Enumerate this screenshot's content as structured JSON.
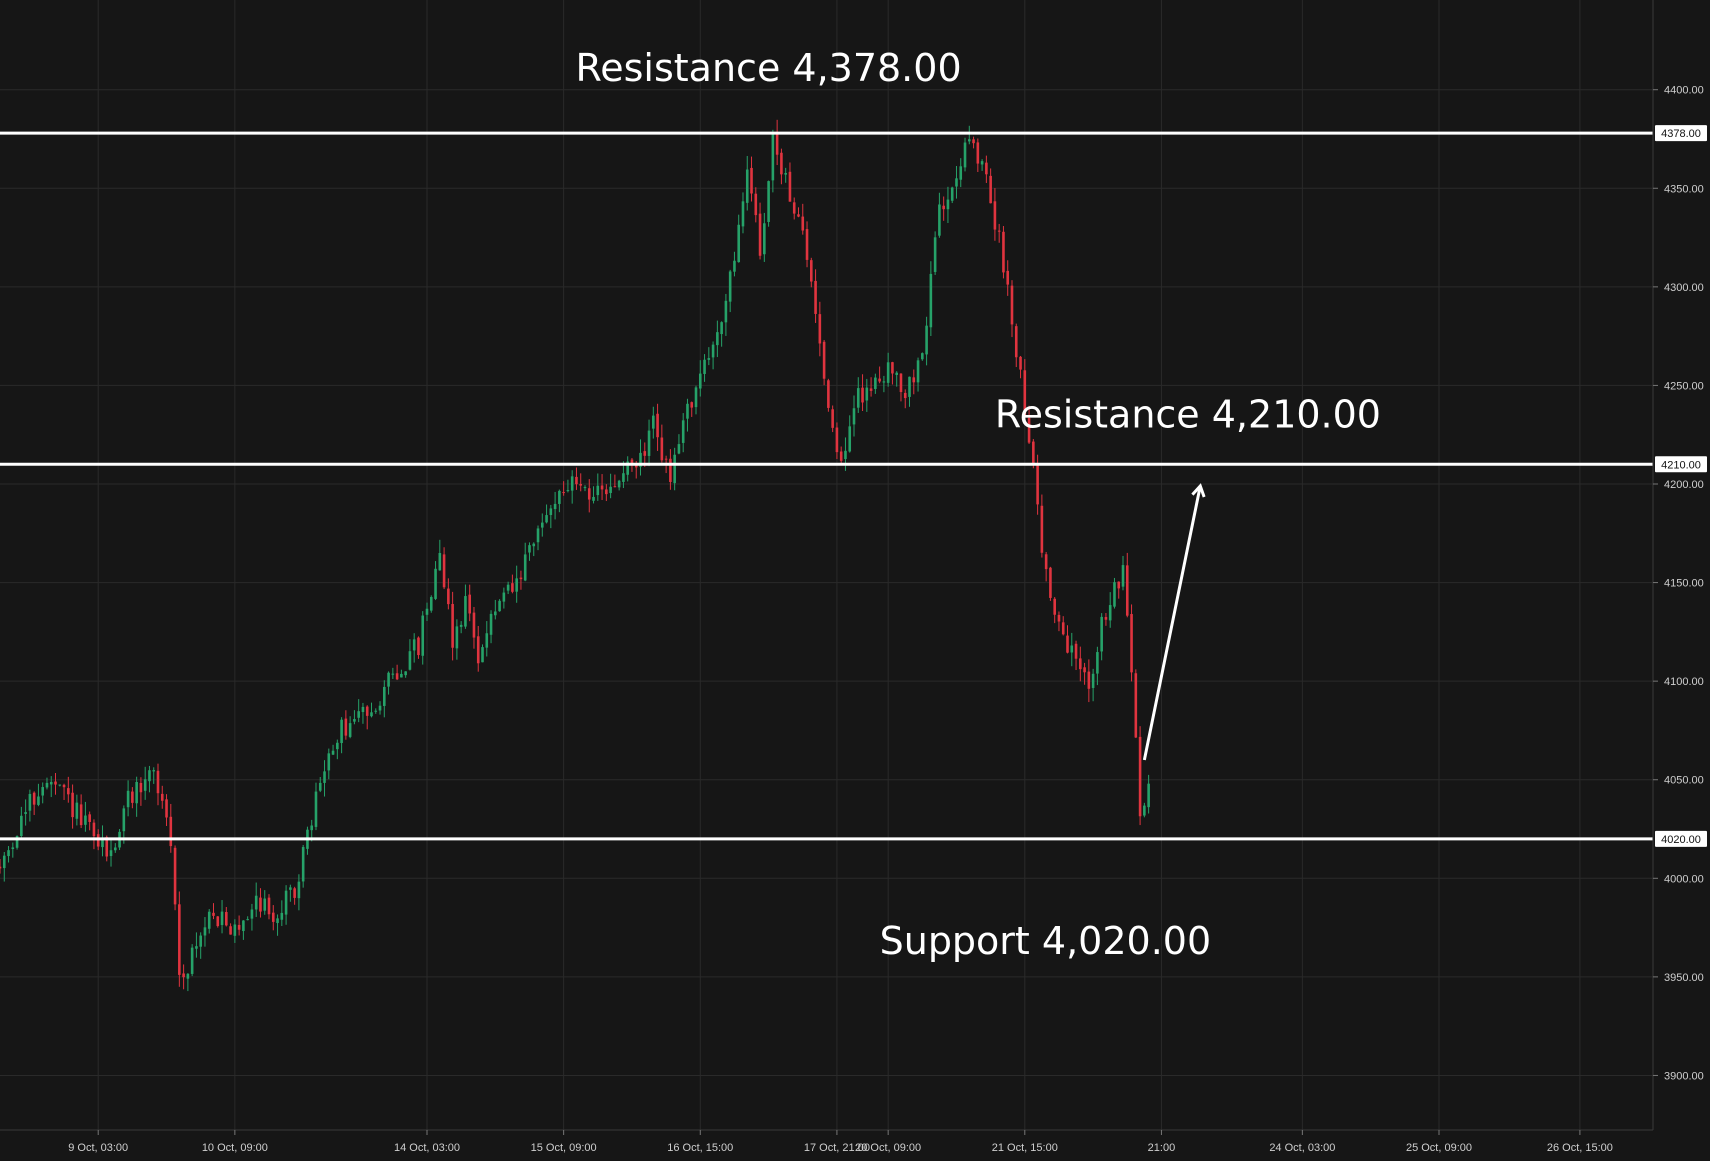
{
  "chart_data": {
    "type": "candlestick",
    "ylim": [
      3860,
      4438
    ],
    "y_ticks": [
      {
        "value": 4400,
        "label": "4400.00"
      },
      {
        "value": 4350,
        "label": "4350.00"
      },
      {
        "value": 4300,
        "label": "4300.00"
      },
      {
        "value": 4250,
        "label": "4250.00"
      },
      {
        "value": 4200,
        "label": "4200.00"
      },
      {
        "value": 4150,
        "label": "4150.00"
      },
      {
        "value": 4100,
        "label": "4100.00"
      },
      {
        "value": 4050,
        "label": "4050.00"
      },
      {
        "value": 4000,
        "label": "4000.00"
      },
      {
        "value": 3950,
        "label": "3950.00"
      },
      {
        "value": 3900,
        "label": "3900.00"
      }
    ],
    "x_ticks": [
      {
        "index": 23,
        "label": "9 Oct, 03:00"
      },
      {
        "index": 55,
        "label": "10 Oct, 09:00"
      },
      {
        "index": 100,
        "label": "14 Oct, 03:00"
      },
      {
        "index": 132,
        "label": "15 Oct, 09:00"
      },
      {
        "index": 164,
        "label": "16 Oct, 15:00"
      },
      {
        "index": 196,
        "label": "17 Oct, 21:00"
      },
      {
        "index": 208,
        "label": "20 Oct, 09:00"
      },
      {
        "index": 240,
        "label": "21 Oct, 15:00"
      },
      {
        "index": 272,
        "label": "21:00"
      },
      {
        "index": 305,
        "label": "24 Oct, 03:00"
      },
      {
        "index": 337,
        "label": "25 Oct, 09:00"
      },
      {
        "index": 370,
        "label": "26 Oct, 15:00"
      }
    ],
    "levels": [
      {
        "value": 4378,
        "tag": "4378.00",
        "annotation": "Resistance 4,378.00"
      },
      {
        "value": 4210,
        "tag": "4210.00",
        "annotation": "Resistance 4,210.00"
      },
      {
        "value": 4020,
        "tag": "4020.00",
        "annotation": "Support 4,020.00"
      }
    ],
    "projection_arrow": {
      "from_index": 268,
      "from_value": 4060,
      "to_index": 281,
      "to_value": 4198
    },
    "colors": {
      "up": "#26a269",
      "down": "#e0343f",
      "level_line": "#ffffff",
      "background": "#161616",
      "grid": "#2a2a2a",
      "text": "#cfcfcf"
    },
    "waypoints": [
      [
        0,
        4005
      ],
      [
        5,
        4030
      ],
      [
        10,
        4048
      ],
      [
        15,
        4042
      ],
      [
        22,
        4020
      ],
      [
        26,
        4012
      ],
      [
        30,
        4040
      ],
      [
        36,
        4055
      ],
      [
        40,
        4018
      ],
      [
        42,
        3950
      ],
      [
        46,
        3965
      ],
      [
        50,
        3985
      ],
      [
        54,
        3970
      ],
      [
        60,
        3990
      ],
      [
        65,
        3980
      ],
      [
        70,
        4000
      ],
      [
        75,
        4050
      ],
      [
        80,
        4075
      ],
      [
        86,
        4085
      ],
      [
        92,
        4102
      ],
      [
        98,
        4118
      ],
      [
        103,
        4168
      ],
      [
        106,
        4120
      ],
      [
        109,
        4140
      ],
      [
        112,
        4115
      ],
      [
        117,
        4140
      ],
      [
        121,
        4148
      ],
      [
        126,
        4175
      ],
      [
        131,
        4198
      ],
      [
        136,
        4200
      ],
      [
        141,
        4192
      ],
      [
        146,
        4205
      ],
      [
        151,
        4215
      ],
      [
        153,
        4233
      ],
      [
        157,
        4200
      ],
      [
        161,
        4240
      ],
      [
        165,
        4258
      ],
      [
        168,
        4278
      ],
      [
        172,
        4310
      ],
      [
        175,
        4362
      ],
      [
        178,
        4320
      ],
      [
        181,
        4372
      ],
      [
        184,
        4355
      ],
      [
        187,
        4335
      ],
      [
        191,
        4290
      ],
      [
        194,
        4240
      ],
      [
        197,
        4210
      ],
      [
        201,
        4245
      ],
      [
        205,
        4250
      ],
      [
        208,
        4262
      ],
      [
        211,
        4245
      ],
      [
        214,
        4252
      ],
      [
        217,
        4282
      ],
      [
        220,
        4340
      ],
      [
        223,
        4355
      ],
      [
        226,
        4372
      ],
      [
        229,
        4365
      ],
      [
        232,
        4345
      ],
      [
        236,
        4300
      ],
      [
        239,
        4255
      ],
      [
        242,
        4210
      ],
      [
        244,
        4165
      ],
      [
        248,
        4125
      ],
      [
        252,
        4110
      ],
      [
        255,
        4100
      ],
      [
        258,
        4128
      ],
      [
        261,
        4145
      ],
      [
        263,
        4155
      ],
      [
        266,
        4075
      ],
      [
        267,
        4030
      ],
      [
        269,
        4048
      ]
    ]
  }
}
